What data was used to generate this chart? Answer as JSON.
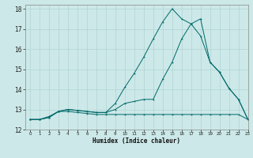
{
  "xlabel": "Humidex (Indice chaleur)",
  "ylabel": "",
  "xlim": [
    -0.5,
    23
  ],
  "ylim": [
    12,
    18.2
  ],
  "xticks": [
    0,
    1,
    2,
    3,
    4,
    5,
    6,
    7,
    8,
    9,
    10,
    11,
    12,
    13,
    14,
    15,
    16,
    17,
    18,
    19,
    20,
    21,
    22,
    23
  ],
  "yticks": [
    12,
    13,
    14,
    15,
    16,
    17,
    18
  ],
  "bg_color": "#cce8e8",
  "grid_color": "#aad0d0",
  "line_color": "#006868",
  "line1_x": [
    0,
    1,
    2,
    3,
    4,
    5,
    6,
    7,
    8,
    9,
    10,
    11,
    12,
    13,
    14,
    15,
    16,
    17,
    18,
    19,
    20,
    21,
    22,
    23
  ],
  "line1_y": [
    12.5,
    12.5,
    12.6,
    12.9,
    12.9,
    12.85,
    12.8,
    12.75,
    12.75,
    12.75,
    12.75,
    12.75,
    12.75,
    12.75,
    12.75,
    12.75,
    12.75,
    12.75,
    12.75,
    12.75,
    12.75,
    12.75,
    12.75,
    12.5
  ],
  "line2_x": [
    0,
    1,
    2,
    3,
    4,
    5,
    6,
    7,
    8,
    9,
    10,
    11,
    12,
    13,
    14,
    15,
    16,
    17,
    18,
    19,
    20,
    21,
    22,
    23
  ],
  "line2_y": [
    12.5,
    12.5,
    12.6,
    12.9,
    13.0,
    12.95,
    12.9,
    12.85,
    12.85,
    13.0,
    13.3,
    13.4,
    13.5,
    13.5,
    14.5,
    15.35,
    16.5,
    17.25,
    17.5,
    15.35,
    14.85,
    14.05,
    13.5,
    12.5
  ],
  "line3_x": [
    0,
    1,
    2,
    3,
    4,
    5,
    6,
    7,
    8,
    9,
    10,
    11,
    12,
    13,
    14,
    15,
    16,
    17,
    18,
    19,
    20,
    21,
    22,
    23
  ],
  "line3_y": [
    12.5,
    12.5,
    12.65,
    12.9,
    13.0,
    12.95,
    12.9,
    12.85,
    12.85,
    13.3,
    14.1,
    14.8,
    15.6,
    16.5,
    17.35,
    18.0,
    17.5,
    17.25,
    16.65,
    15.35,
    14.85,
    14.05,
    13.5,
    12.5
  ]
}
